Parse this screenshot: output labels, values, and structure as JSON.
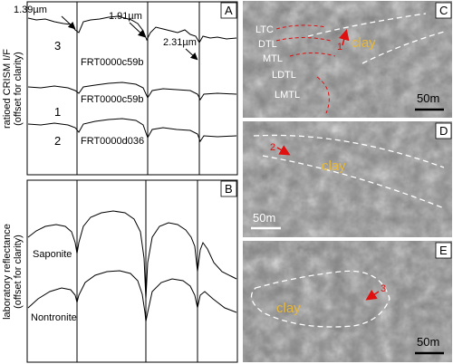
{
  "panel_a": {
    "label": "A",
    "y_label": [
      "ratioed CRISM I/F",
      "(offset for clarity)"
    ],
    "wavelengths": [
      "1.39µm",
      "1.91µm",
      "2.31µm"
    ],
    "spectra": [
      {
        "number": "3",
        "id": "FRT0000c59b"
      },
      {
        "number": "1",
        "id": "FRT0000c59b"
      },
      {
        "number": "2",
        "id": "FRT0000d036"
      }
    ]
  },
  "panel_b": {
    "label": "B",
    "y_label": [
      "laboratory reflectance",
      "(offset for clarity)"
    ],
    "spectra": [
      "Saponite",
      "Nontronite"
    ]
  },
  "panel_c": {
    "label": "C",
    "units": [
      "LTC",
      "DTL",
      "MTL",
      "LDTL",
      "LMTL"
    ],
    "clay": "clay",
    "site": "1",
    "scale": "50m"
  },
  "panel_d": {
    "label": "D",
    "clay": "clay",
    "site": "2",
    "scale": "50m"
  },
  "panel_e": {
    "label": "E",
    "clay": "clay",
    "site": "3",
    "scale": "50m"
  }
}
